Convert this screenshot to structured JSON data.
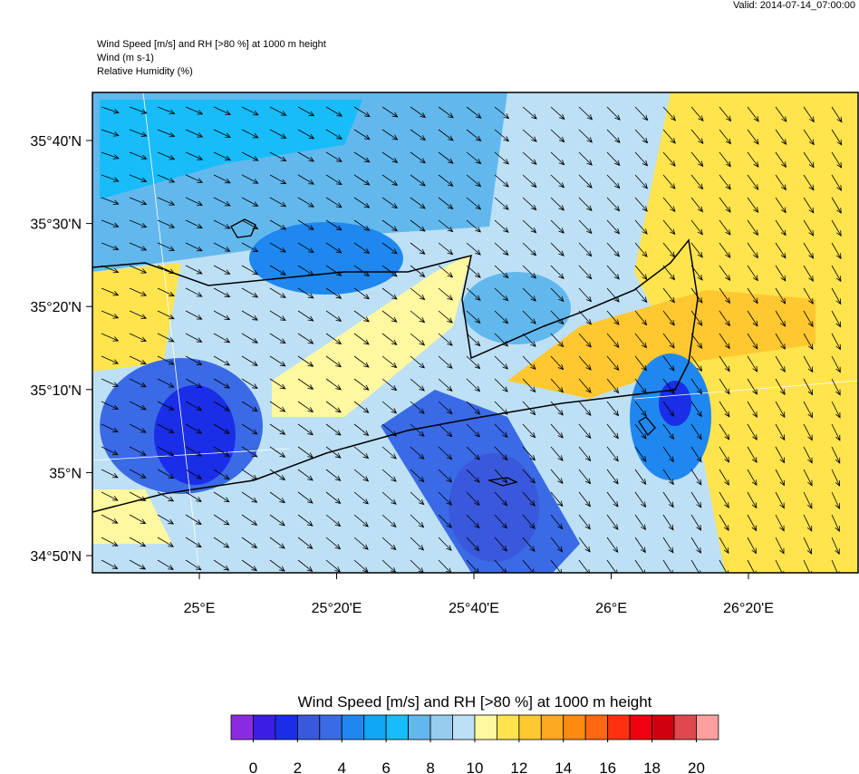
{
  "header": {
    "valid": "Valid: 2014-07-14_07:00:00",
    "lines": [
      "Wind Speed [m/s] and RH [>80 %] at 1000 m height",
      "Wind   (m s-1)",
      "Relative Humidity   (%)"
    ]
  },
  "map": {
    "lat_labels": [
      "35°40'N",
      "35°30'N",
      "35°20'N",
      "35°10'N",
      "35°N",
      "34°50'N"
    ],
    "lon_labels": [
      "25°E",
      "25°20'E",
      "25°40'E",
      "26°E",
      "26°20'E"
    ]
  },
  "colorbar": {
    "title": "Wind Speed [m/s] and RH [>80 %] at 1000 m height",
    "ticks": [
      0,
      2,
      4,
      6,
      8,
      10,
      12,
      14,
      16,
      18,
      20
    ],
    "colors": [
      "#8a2be2",
      "#3a1ee6",
      "#1a2ee8",
      "#3a58dc",
      "#3a6ae6",
      "#1e88f0",
      "#10a6f6",
      "#18bcf8",
      "#62b8ec",
      "#98ccee",
      "#bde0f5",
      "#fff8a0",
      "#ffe44e",
      "#ffc830",
      "#ffa820",
      "#ff8a10",
      "#ff6810",
      "#ff3010",
      "#f00010",
      "#d00010",
      "#e04850",
      "#ffa0a0"
    ]
  }
}
